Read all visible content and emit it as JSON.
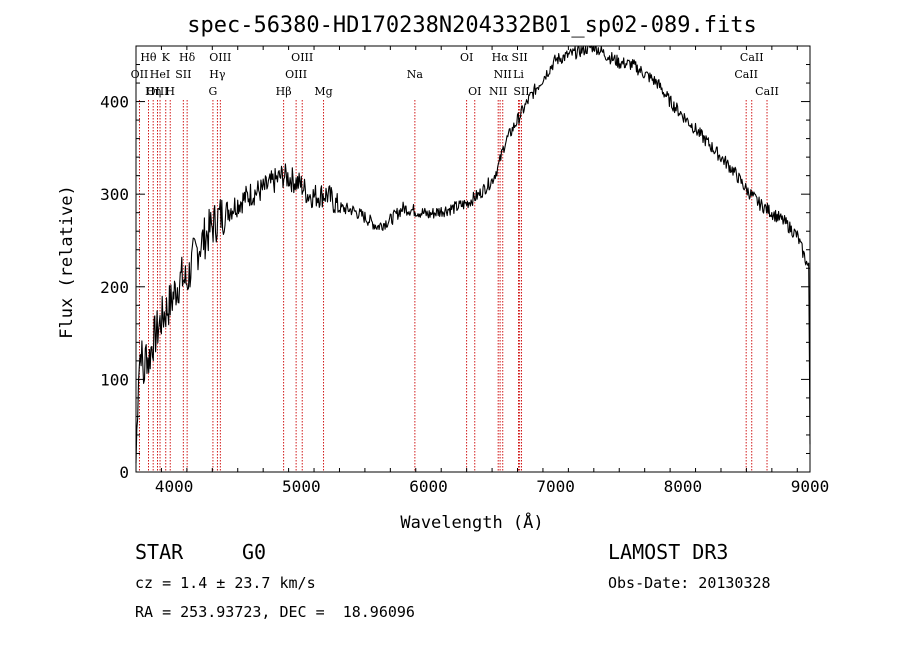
{
  "chart_data": {
    "type": "line",
    "title": "spec-56380-HD170238N204332B01_sp02-089.fits",
    "xlabel": "Wavelength (Å)",
    "ylabel": "Flux (relative)",
    "xlim": [
      3700,
      9000
    ],
    "ylim": [
      0,
      460
    ],
    "x_ticks": [
      4000,
      5000,
      6000,
      7000,
      8000,
      9000
    ],
    "y_ticks": [
      0,
      100,
      200,
      300,
      400
    ],
    "series": [
      {
        "name": "flux",
        "x": [
          3700,
          3720,
          3740,
          3760,
          3780,
          3800,
          3830,
          3860,
          3900,
          3940,
          3980,
          4020,
          4060,
          4100,
          4150,
          4200,
          4250,
          4300,
          4350,
          4400,
          4500,
          4600,
          4700,
          4800,
          4850,
          4900,
          5000,
          5050,
          5100,
          5200,
          5300,
          5400,
          5500,
          5600,
          5700,
          5800,
          5900,
          6000,
          6100,
          6200,
          6300,
          6400,
          6500,
          6550,
          6600,
          6700,
          6800,
          6900,
          7000,
          7100,
          7200,
          7300,
          7400,
          7500,
          7600,
          7700,
          7800,
          7900,
          8000,
          8100,
          8200,
          8300,
          8400,
          8500,
          8600,
          8700,
          8800,
          8900,
          8950,
          8990,
          9000
        ],
        "y": [
          10,
          110,
          135,
          100,
          130,
          120,
          140,
          150,
          165,
          175,
          185,
          200,
          210,
          205,
          230,
          245,
          255,
          265,
          275,
          280,
          290,
          300,
          305,
          315,
          320,
          318,
          310,
          300,
          298,
          300,
          285,
          283,
          275,
          265,
          272,
          285,
          282,
          278,
          282,
          285,
          290,
          300,
          315,
          330,
          355,
          380,
          405,
          425,
          445,
          450,
          455,
          460,
          450,
          442,
          440,
          430,
          420,
          400,
          385,
          370,
          355,
          340,
          325,
          305,
          290,
          280,
          270,
          255,
          235,
          220,
          30
        ]
      }
    ],
    "spectral_lines": [
      {
        "label": "Hθ",
        "wavelength": 3798,
        "row": 1
      },
      {
        "label": "K",
        "wavelength": 3934,
        "row": 1
      },
      {
        "label": "Hδ",
        "wavelength": 4102,
        "row": 1
      },
      {
        "label": "OIII",
        "wavelength": 4363,
        "row": 1
      },
      {
        "label": "OIII",
        "wavelength": 5007,
        "row": 1
      },
      {
        "label": "OI",
        "wavelength": 6300,
        "row": 1
      },
      {
        "label": "Hα",
        "wavelength": 6563,
        "row": 1
      },
      {
        "label": "SII",
        "wavelength": 6717,
        "row": 1
      },
      {
        "label": "CaII",
        "wavelength": 8542,
        "row": 1
      },
      {
        "label": "OII",
        "wavelength": 3727,
        "row": 2
      },
      {
        "label": "HeI",
        "wavelength": 3889,
        "row": 2
      },
      {
        "label": "SII",
        "wavelength": 4072,
        "row": 2
      },
      {
        "label": "Hγ",
        "wavelength": 4340,
        "row": 2
      },
      {
        "label": "OIII",
        "wavelength": 4959,
        "row": 2
      },
      {
        "label": "Na",
        "wavelength": 5893,
        "row": 2
      },
      {
        "label": "NII",
        "wavelength": 6584,
        "row": 2
      },
      {
        "label": "Li",
        "wavelength": 6708,
        "row": 2
      },
      {
        "label": "CaII",
        "wavelength": 8498,
        "row": 2
      },
      {
        "label": "OIII",
        "wavelength": 3869,
        "row": 3
      },
      {
        "label": "Hη",
        "wavelength": 3835,
        "row": 3
      },
      {
        "label": "H",
        "wavelength": 3969,
        "row": 3
      },
      {
        "label": "G",
        "wavelength": 4305,
        "row": 3
      },
      {
        "label": "Hβ",
        "wavelength": 4861,
        "row": 3
      },
      {
        "label": "Mg",
        "wavelength": 5175,
        "row": 3
      },
      {
        "label": "OI",
        "wavelength": 6364,
        "row": 3
      },
      {
        "label": "NII",
        "wavelength": 6548,
        "row": 3
      },
      {
        "label": "SII",
        "wavelength": 6731,
        "row": 3
      },
      {
        "label": "CaII",
        "wavelength": 8662,
        "row": 3
      }
    ],
    "colors": {
      "line": "#000000",
      "marker": "#cc0000",
      "axes": "#000000"
    }
  },
  "info": {
    "object_class": "STAR",
    "subclass": "G0",
    "survey": "LAMOST DR3",
    "redshift": "cz = 1.4 ± 23.7 km/s",
    "obs_date": "Obs-Date: 20130328",
    "coords": "RA = 253.93723, DEC =  18.96096"
  }
}
